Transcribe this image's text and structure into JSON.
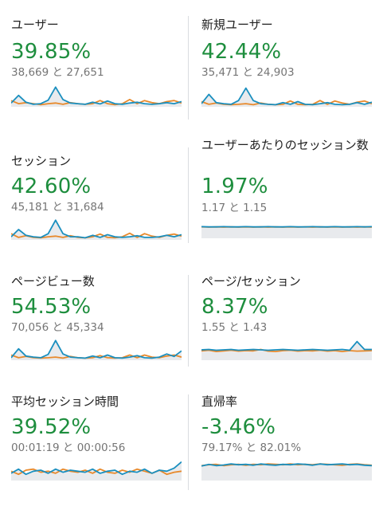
{
  "colors": {
    "positive": "#1e8e3e",
    "series_current": "#1a8fbf",
    "series_previous": "#e8892b",
    "area_fill": "#e8eaed"
  },
  "cards": [
    {
      "title": "ユーザー",
      "change": "39.85%",
      "compare": "38,669 と 27,651",
      "sparkline": {
        "type": "spiky",
        "current": [
          0.18,
          0.55,
          0.22,
          0.12,
          0.15,
          0.32,
          0.95,
          0.35,
          0.18,
          0.15,
          0.12,
          0.22,
          0.14,
          0.28,
          0.15,
          0.12,
          0.18,
          0.22,
          0.15,
          0.12,
          0.15,
          0.2,
          0.15,
          0.25
        ],
        "previous": [
          0.3,
          0.15,
          0.2,
          0.15,
          0.1,
          0.15,
          0.18,
          0.12,
          0.2,
          0.15,
          0.12,
          0.15,
          0.3,
          0.15,
          0.1,
          0.15,
          0.35,
          0.15,
          0.3,
          0.2,
          0.15,
          0.25,
          0.3,
          0.18
        ]
      }
    },
    {
      "title": "新規ユーザー",
      "change": "42.44%",
      "compare": "35,471 と 24,903",
      "sparkline": {
        "type": "spiky",
        "current": [
          0.15,
          0.6,
          0.2,
          0.15,
          0.12,
          0.3,
          0.9,
          0.3,
          0.15,
          0.12,
          0.1,
          0.2,
          0.12,
          0.25,
          0.12,
          0.1,
          0.15,
          0.2,
          0.12,
          0.1,
          0.12,
          0.2,
          0.12,
          0.22
        ],
        "previous": [
          0.25,
          0.12,
          0.18,
          0.12,
          0.1,
          0.12,
          0.15,
          0.1,
          0.18,
          0.12,
          0.1,
          0.12,
          0.28,
          0.12,
          0.1,
          0.12,
          0.3,
          0.12,
          0.28,
          0.18,
          0.12,
          0.22,
          0.28,
          0.15
        ]
      }
    },
    {
      "title": "セッション",
      "change": "42.60%",
      "compare": "45,181 と 31,684",
      "sparkline": {
        "type": "spiky",
        "current": [
          0.15,
          0.5,
          0.22,
          0.15,
          0.12,
          0.3,
          0.95,
          0.3,
          0.15,
          0.15,
          0.1,
          0.22,
          0.12,
          0.25,
          0.15,
          0.12,
          0.15,
          0.2,
          0.12,
          0.12,
          0.15,
          0.22,
          0.15,
          0.25
        ],
        "previous": [
          0.3,
          0.12,
          0.2,
          0.12,
          0.1,
          0.15,
          0.18,
          0.12,
          0.2,
          0.12,
          0.1,
          0.15,
          0.28,
          0.12,
          0.1,
          0.15,
          0.32,
          0.12,
          0.3,
          0.18,
          0.12,
          0.22,
          0.28,
          0.18
        ]
      }
    },
    {
      "title": "ユーザーあたりのセッション数",
      "change": "1.97%",
      "compare": "1.17 と 1.15",
      "sparkline": {
        "type": "flat",
        "current": [
          0.56,
          0.55,
          0.55,
          0.56,
          0.55,
          0.55,
          0.56,
          0.55,
          0.55,
          0.56,
          0.55,
          0.55,
          0.56,
          0.55,
          0.55,
          0.56,
          0.55,
          0.55,
          0.56,
          0.55,
          0.55,
          0.56,
          0.55,
          0.56
        ],
        "previous": [
          0.55,
          0.54,
          0.55,
          0.54,
          0.55,
          0.54,
          0.55,
          0.54,
          0.55,
          0.54,
          0.55,
          0.54,
          0.55,
          0.54,
          0.55,
          0.54,
          0.55,
          0.54,
          0.55,
          0.54,
          0.55,
          0.54,
          0.55,
          0.54
        ]
      }
    },
    {
      "title": "ページビュー数",
      "change": "54.53%",
      "compare": "70,056 と 45,334",
      "sparkline": {
        "type": "spiky",
        "current": [
          0.12,
          0.55,
          0.2,
          0.15,
          0.12,
          0.28,
          0.95,
          0.3,
          0.15,
          0.12,
          0.1,
          0.2,
          0.12,
          0.25,
          0.12,
          0.1,
          0.15,
          0.22,
          0.12,
          0.1,
          0.15,
          0.3,
          0.18,
          0.45
        ],
        "previous": [
          0.25,
          0.12,
          0.18,
          0.12,
          0.1,
          0.12,
          0.15,
          0.1,
          0.18,
          0.12,
          0.1,
          0.12,
          0.22,
          0.12,
          0.1,
          0.12,
          0.25,
          0.12,
          0.25,
          0.15,
          0.12,
          0.2,
          0.25,
          0.15
        ]
      }
    },
    {
      "title": "ページ/セッション",
      "change": "8.37%",
      "compare": "1.55 と 1.43",
      "sparkline": {
        "type": "flat",
        "current": [
          0.5,
          0.52,
          0.48,
          0.5,
          0.52,
          0.48,
          0.5,
          0.52,
          0.5,
          0.48,
          0.5,
          0.52,
          0.5,
          0.48,
          0.5,
          0.52,
          0.5,
          0.48,
          0.5,
          0.52,
          0.48,
          0.9,
          0.52,
          0.52
        ],
        "previous": [
          0.45,
          0.48,
          0.42,
          0.45,
          0.48,
          0.44,
          0.46,
          0.45,
          0.52,
          0.44,
          0.42,
          0.46,
          0.48,
          0.44,
          0.46,
          0.45,
          0.48,
          0.44,
          0.46,
          0.42,
          0.46,
          0.44,
          0.45,
          0.46
        ]
      }
    },
    {
      "title": "平均セッション時間",
      "change": "39.52%",
      "compare": "00:01:19 と 00:00:56",
      "sparkline": {
        "type": "jagged",
        "current": [
          0.35,
          0.55,
          0.3,
          0.45,
          0.5,
          0.35,
          0.55,
          0.4,
          0.5,
          0.45,
          0.4,
          0.55,
          0.35,
          0.45,
          0.5,
          0.3,
          0.45,
          0.4,
          0.55,
          0.35,
          0.5,
          0.45,
          0.6,
          0.9
        ],
        "previous": [
          0.45,
          0.3,
          0.5,
          0.55,
          0.4,
          0.45,
          0.35,
          0.55,
          0.45,
          0.4,
          0.5,
          0.35,
          0.55,
          0.4,
          0.35,
          0.5,
          0.4,
          0.55,
          0.45,
          0.35,
          0.5,
          0.3,
          0.4,
          0.45
        ]
      }
    },
    {
      "title": "直帰率",
      "change": "-3.46%",
      "compare": "79.17% と 82.01%",
      "sparkline": {
        "type": "flat",
        "current": [
          0.7,
          0.78,
          0.72,
          0.75,
          0.8,
          0.76,
          0.78,
          0.74,
          0.8,
          0.76,
          0.74,
          0.78,
          0.76,
          0.8,
          0.78,
          0.74,
          0.8,
          0.76,
          0.78,
          0.8,
          0.76,
          0.78,
          0.74,
          0.72
        ],
        "previous": [
          0.72,
          0.76,
          0.78,
          0.72,
          0.76,
          0.78,
          0.74,
          0.78,
          0.76,
          0.8,
          0.78,
          0.76,
          0.8,
          0.76,
          0.78,
          0.76,
          0.8,
          0.78,
          0.76,
          0.74,
          0.78,
          0.8,
          0.76,
          0.74
        ]
      }
    }
  ]
}
